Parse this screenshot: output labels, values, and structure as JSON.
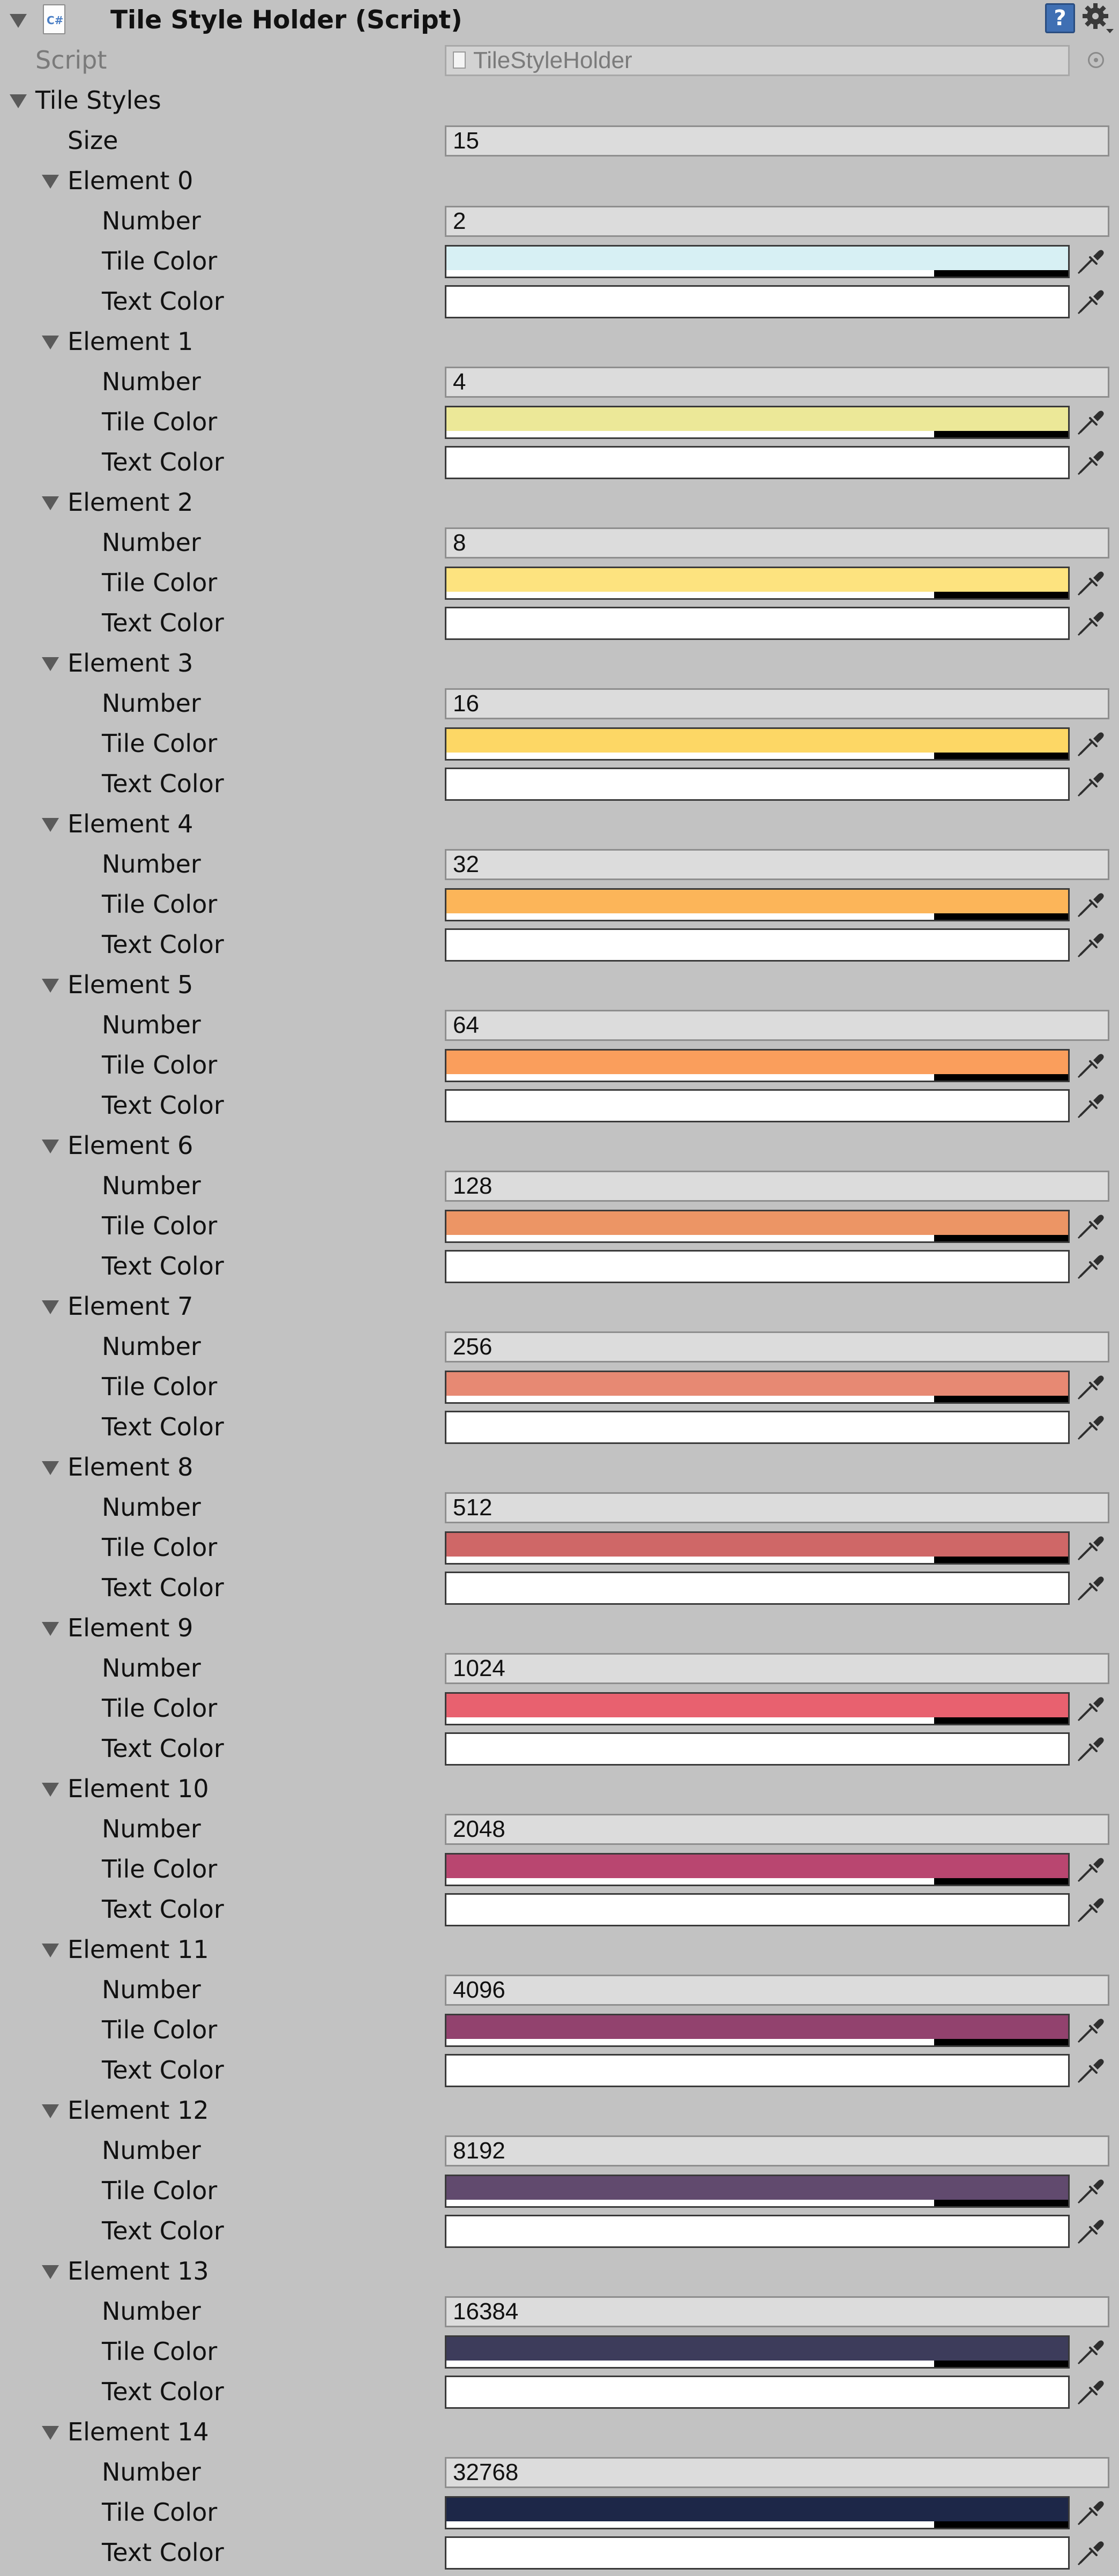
{
  "header": {
    "title": "Tile Style Holder (Script)"
  },
  "script_row": {
    "label": "Script",
    "value": "TileStyleHolder"
  },
  "tile_styles": {
    "label": "Tile Styles",
    "size_label": "Size",
    "size_value": "15",
    "number_label": "Number",
    "tile_color_label": "Tile Color",
    "text_color_label": "Text Color",
    "elements": [
      {
        "label": "Element 0",
        "number": "2",
        "tile_color": "#d7f0f4",
        "text_color": "#ffffff"
      },
      {
        "label": "Element 1",
        "number": "4",
        "tile_color": "#ece898",
        "text_color": "#ffffff"
      },
      {
        "label": "Element 2",
        "number": "8",
        "tile_color": "#fde37f",
        "text_color": "#ffffff"
      },
      {
        "label": "Element 3",
        "number": "16",
        "tile_color": "#fdd765",
        "text_color": "#ffffff"
      },
      {
        "label": "Element 4",
        "number": "32",
        "tile_color": "#fcb559",
        "text_color": "#ffffff"
      },
      {
        "label": "Element 5",
        "number": "64",
        "tile_color": "#fa9e5c",
        "text_color": "#ffffff"
      },
      {
        "label": "Element 6",
        "number": "128",
        "tile_color": "#ec9565",
        "text_color": "#ffffff"
      },
      {
        "label": "Element 7",
        "number": "256",
        "tile_color": "#e78973",
        "text_color": "#ffffff"
      },
      {
        "label": "Element 8",
        "number": "512",
        "tile_color": "#cf6767",
        "text_color": "#ffffff"
      },
      {
        "label": "Element 9",
        "number": "1024",
        "tile_color": "#e8616f",
        "text_color": "#ffffff"
      },
      {
        "label": "Element 10",
        "number": "2048",
        "tile_color": "#b94670",
        "text_color": "#ffffff"
      },
      {
        "label": "Element 11",
        "number": "4096",
        "tile_color": "#92426e",
        "text_color": "#ffffff"
      },
      {
        "label": "Element 12",
        "number": "8192",
        "tile_color": "#614a6e",
        "text_color": "#ffffff"
      },
      {
        "label": "Element 13",
        "number": "16384",
        "tile_color": "#3d3c5b",
        "text_color": "#ffffff"
      },
      {
        "label": "Element 14",
        "number": "32768",
        "tile_color": "#1d2748",
        "text_color": "#ffffff"
      }
    ]
  },
  "icons": {
    "help": "help-icon",
    "gear": "gear-icon",
    "eyedropper": "eyedropper-icon",
    "foldout": "triangle-down-icon",
    "script": "cs-script-icon",
    "object_picker": "object-picker-icon"
  }
}
